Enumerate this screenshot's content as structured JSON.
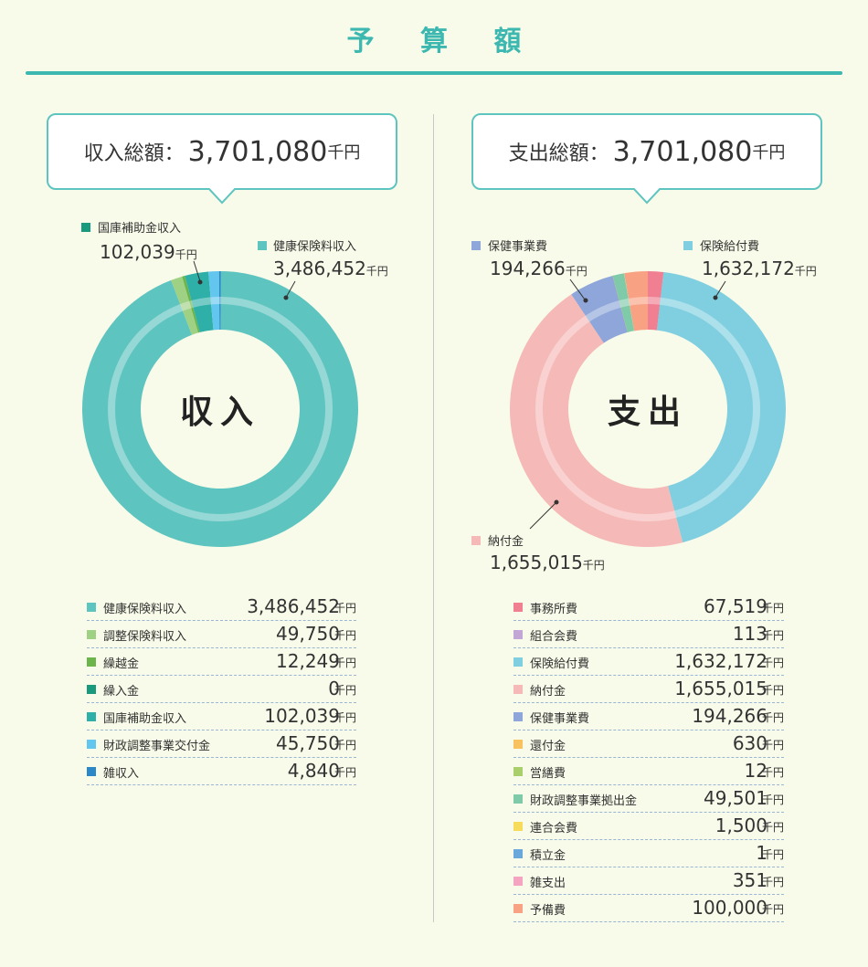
{
  "title": "予 算 額",
  "income": {
    "total_label": "収入総額：",
    "total_value": "3,701,080",
    "unit": "千円",
    "center_label": "収入",
    "callouts": [
      {
        "name": "国庫補助金収入",
        "value": "102,039"
      },
      {
        "name": "健康保険料収入",
        "value": "3,486,452"
      }
    ],
    "items": [
      {
        "name": "健康保険料収入",
        "value": "3,486,452",
        "color": "#5ec4bf"
      },
      {
        "name": "調整保険料収入",
        "value": "49,750",
        "color": "#9fd184"
      },
      {
        "name": "繰越金",
        "value": "12,249",
        "color": "#6bb54a"
      },
      {
        "name": "繰入金",
        "value": "0",
        "color": "#1a9a7c"
      },
      {
        "name": "国庫補助金収入",
        "value": "102,039",
        "color": "#2eb0a8"
      },
      {
        "name": "財政調整事業交付金",
        "value": "45,750",
        "color": "#63c6ef"
      },
      {
        "name": "雑収入",
        "value": "4,840",
        "color": "#2b87c8"
      }
    ]
  },
  "expense": {
    "total_label": "支出総額：",
    "total_value": "3,701,080",
    "unit": "千円",
    "center_label": "支出",
    "callouts": [
      {
        "name": "保健事業費",
        "value": "194,266"
      },
      {
        "name": "保険給付費",
        "value": "1,632,172"
      },
      {
        "name": "納付金",
        "value": "1,655,015"
      }
    ],
    "items": [
      {
        "name": "事務所費",
        "value": "67,519",
        "color": "#ef7f91"
      },
      {
        "name": "組合会費",
        "value": "113",
        "color": "#c2a6d6"
      },
      {
        "name": "保険給付費",
        "value": "1,632,172",
        "color": "#80cfe0"
      },
      {
        "name": "納付金",
        "value": "1,655,015",
        "color": "#f5b9b7"
      },
      {
        "name": "保健事業費",
        "value": "194,266",
        "color": "#8ea6d9"
      },
      {
        "name": "還付金",
        "value": "630",
        "color": "#f8c25e"
      },
      {
        "name": "営繕費",
        "value": "12",
        "color": "#a9cf6a"
      },
      {
        "name": "財政調整事業拠出金",
        "value": "49,501",
        "color": "#7fcaa9"
      },
      {
        "name": "連合会費",
        "value": "1,500",
        "color": "#f7db5b"
      },
      {
        "name": "積立金",
        "value": "1",
        "color": "#6aa8dc"
      },
      {
        "name": "雑支出",
        "value": "351",
        "color": "#f4a3c0"
      },
      {
        "name": "予備費",
        "value": "100,000",
        "color": "#f9a183"
      }
    ]
  },
  "chart_data": [
    {
      "type": "pie",
      "categories": [
        "健康保険料収入",
        "調整保険料収入",
        "繰越金",
        "繰入金",
        "国庫補助金収入",
        "財政調整事業交付金",
        "雑収入"
      ],
      "values": [
        3486452,
        49750,
        12249,
        0,
        102039,
        45750,
        4840
      ]
    },
    {
      "type": "pie",
      "categories": [
        "事務所費",
        "組合会費",
        "保険給付費",
        "納付金",
        "保健事業費",
        "還付金",
        "営繕費",
        "財政調整事業拠出金",
        "連合会費",
        "積立金",
        "雑支出",
        "予備費"
      ],
      "values": [
        67519,
        113,
        1632172,
        1655015,
        194266,
        630,
        12,
        49501,
        1500,
        1,
        351,
        100000
      ]
    }
  ]
}
